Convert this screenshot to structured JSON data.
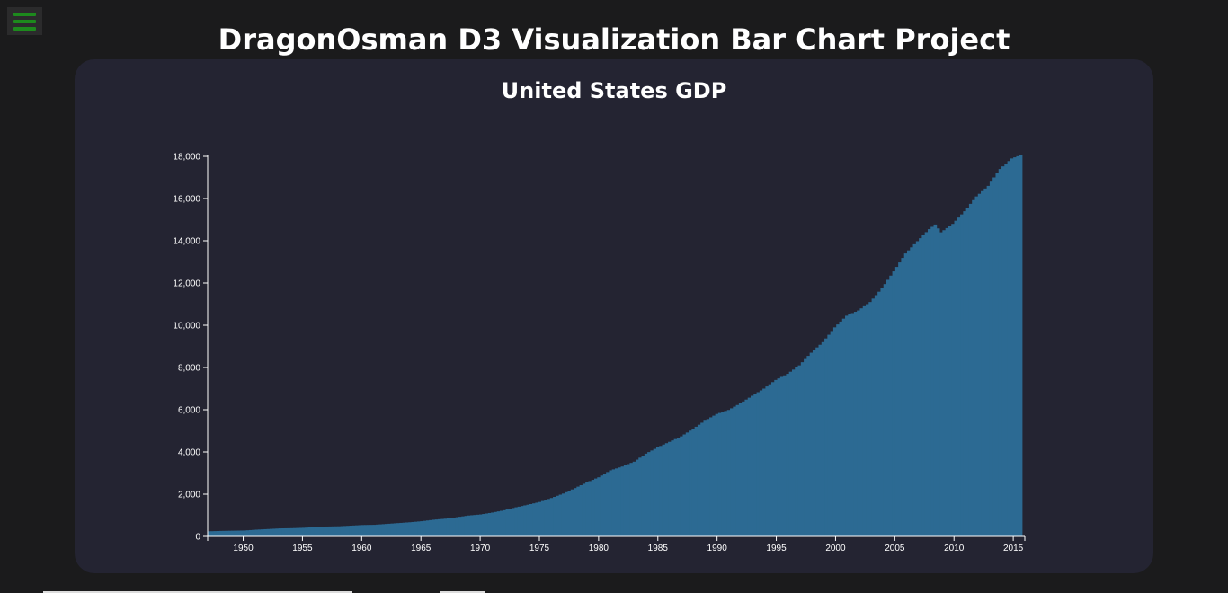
{
  "page": {
    "title": "DragonOsman D3 Visualization Bar Chart Project"
  },
  "menu": {
    "icon": "hamburger-menu-icon",
    "accent_color": "#1d8a1d"
  },
  "chart_data": {
    "type": "bar",
    "title": "United States GDP",
    "xlabel": "",
    "ylabel": "",
    "bar_color": "#2c6a93",
    "xlim": [
      1947,
      2015.75
    ],
    "ylim": [
      0,
      18000
    ],
    "y_ticks": [
      0,
      2000,
      4000,
      6000,
      8000,
      10000,
      12000,
      14000,
      16000,
      18000
    ],
    "x_ticks": [
      1950,
      1955,
      1960,
      1965,
      1970,
      1975,
      1980,
      1985,
      1990,
      1995,
      2000,
      2005,
      2010,
      2015
    ],
    "y_tick_labels": [
      "0",
      "2,000",
      "4,000",
      "6,000",
      "8,000",
      "10,000",
      "12,000",
      "14,000",
      "16,000",
      "18,000"
    ],
    "x_tick_labels": [
      "1950",
      "1955",
      "1960",
      "1965",
      "1970",
      "1975",
      "1980",
      "1985",
      "1990",
      "1995",
      "2000",
      "2005",
      "2010",
      "2015"
    ],
    "bar_interval": "quarterly",
    "grid": false,
    "series": [
      {
        "x": [
          1947,
          1948,
          1949,
          1950,
          1951,
          1952,
          1953,
          1954,
          1955,
          1956,
          1957,
          1958,
          1959,
          1960,
          1961,
          1962,
          1963,
          1964,
          1965,
          1966,
          1967,
          1968,
          1969,
          1970,
          1971,
          1972,
          1973,
          1974,
          1975,
          1976,
          1977,
          1978,
          1979,
          1980,
          1981,
          1982,
          1983,
          1984,
          1985,
          1986,
          1987,
          1988,
          1989,
          1990,
          1991,
          1992,
          1993,
          1994,
          1995,
          1996,
          1997,
          1998,
          1999,
          2000,
          2001,
          2002,
          2003,
          2004,
          2005,
          2006,
          2007,
          2008,
          2008.5,
          2009,
          2010,
          2011,
          2012,
          2013,
          2014,
          2015,
          2015.75
        ],
        "values": [
          243,
          260,
          270,
          280,
          320,
          350,
          380,
          390,
          410,
          440,
          470,
          480,
          510,
          540,
          550,
          590,
          630,
          670,
          720,
          790,
          840,
          910,
          990,
          1040,
          1130,
          1240,
          1380,
          1500,
          1630,
          1820,
          2030,
          2290,
          2560,
          2800,
          3130,
          3310,
          3540,
          3920,
          4220,
          4480,
          4740,
          5100,
          5480,
          5800,
          5990,
          6300,
          6660,
          7000,
          7410,
          7700,
          8100,
          8700,
          9200,
          9900,
          10450,
          10700,
          11100,
          11750,
          12550,
          13400,
          13980,
          14550,
          14770,
          14400,
          14800,
          15400,
          16100,
          16600,
          17400,
          17900,
          18060
        ]
      }
    ]
  }
}
